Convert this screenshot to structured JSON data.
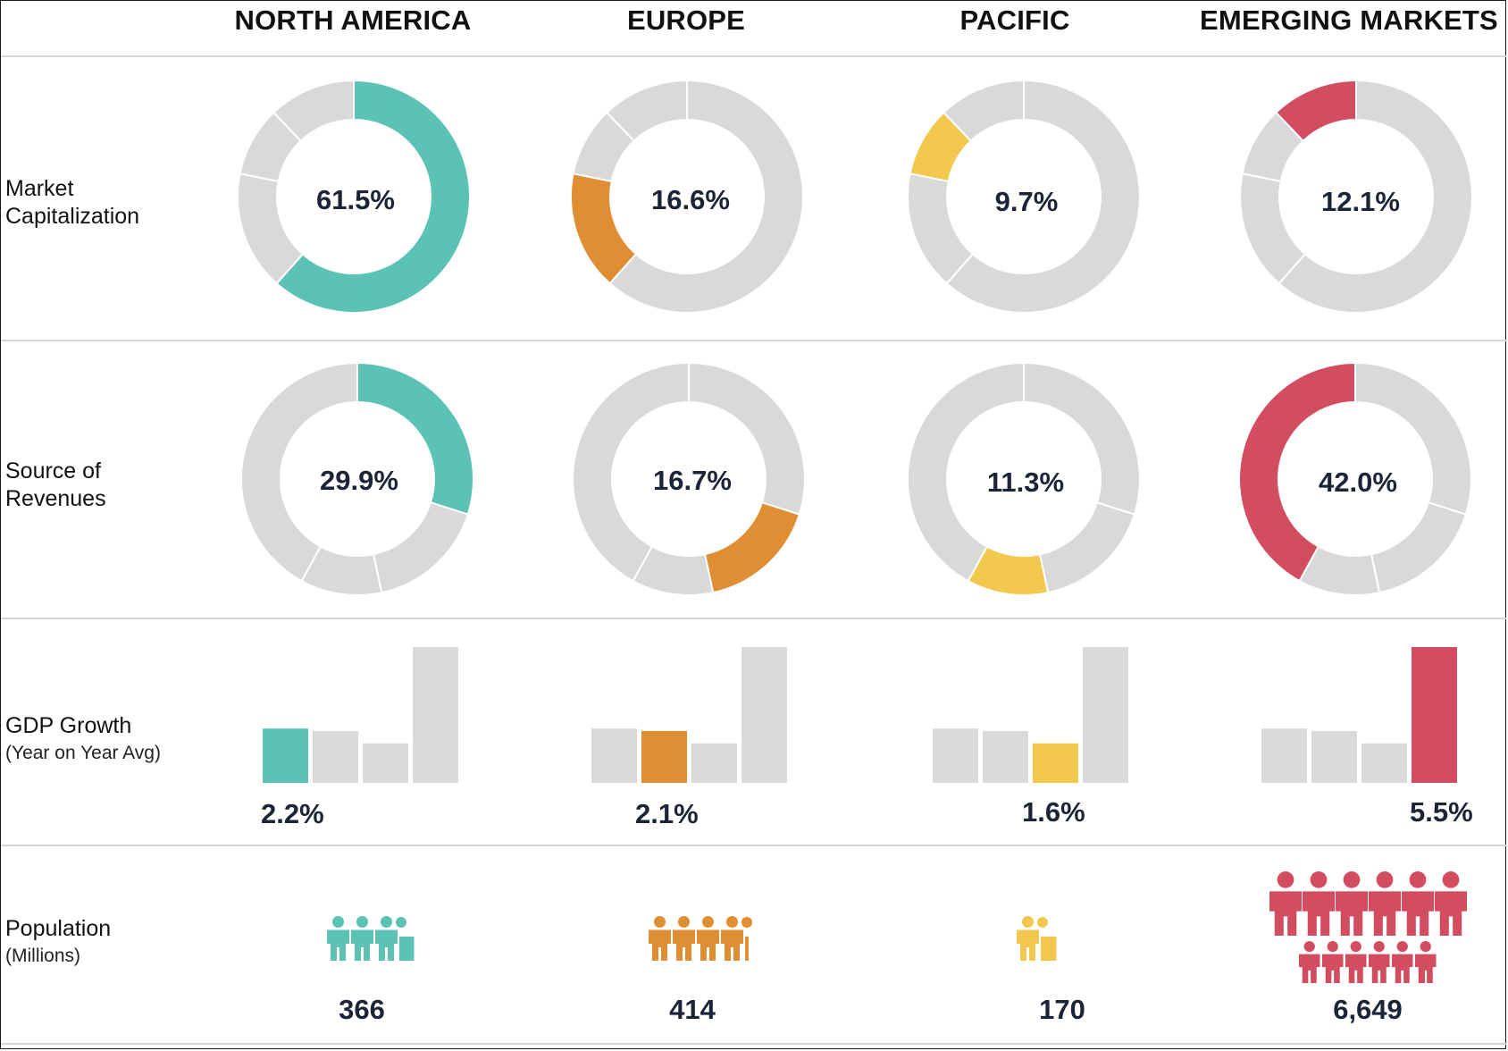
{
  "regions": [
    {
      "name": "NORTH AMERICA",
      "color": "#5bc2b4"
    },
    {
      "name": "EUROPE",
      "color": "#e08e33"
    },
    {
      "name": "PACIFIC",
      "color": "#f3c84e"
    },
    {
      "name": "EMERGING MARKETS",
      "color": "#d34d61"
    }
  ],
  "rows": {
    "market_cap": {
      "label": "Market Capitalization",
      "label_lines": [
        "Market",
        "Capitalization"
      ]
    },
    "revenues": {
      "label": "Source of Revenues",
      "label_lines": [
        "Source of",
        "Revenues"
      ]
    },
    "gdp": {
      "label": "GDP Growth",
      "sublabel": "(Year on Year Avg)"
    },
    "population": {
      "label": "Population",
      "sublabel": "(Millions)"
    }
  },
  "chart_data": {
    "type": "infographic",
    "categories": [
      "NORTH AMERICA",
      "EUROPE",
      "PACIFIC",
      "EMERGING MARKETS"
    ],
    "colors": {
      "NORTH AMERICA": "#5bc2b4",
      "EUROPE": "#e08e33",
      "PACIFIC": "#f3c84e",
      "EMERGING MARKETS": "#d34d61",
      "neutral": "#d9d9d9"
    },
    "market_capitalization": {
      "type": "donut",
      "values": [
        61.5,
        16.6,
        9.7,
        12.1
      ],
      "labels": [
        "61.5%",
        "16.6%",
        "9.7%",
        "12.1%"
      ]
    },
    "source_of_revenues": {
      "type": "donut",
      "values": [
        29.9,
        16.7,
        11.3,
        42.0
      ],
      "labels": [
        "29.9%",
        "16.7%",
        "11.3%",
        "42.0%"
      ]
    },
    "gdp_growth": {
      "type": "bar",
      "values": [
        2.2,
        2.1,
        1.6,
        5.5
      ],
      "labels": [
        "2.2%",
        "2.1%",
        "1.6%",
        "5.5%"
      ]
    },
    "population": {
      "type": "pictogram",
      "values": [
        366,
        414,
        170,
        6649
      ],
      "labels": [
        "366",
        "414",
        "170",
        "6,649"
      ]
    }
  }
}
